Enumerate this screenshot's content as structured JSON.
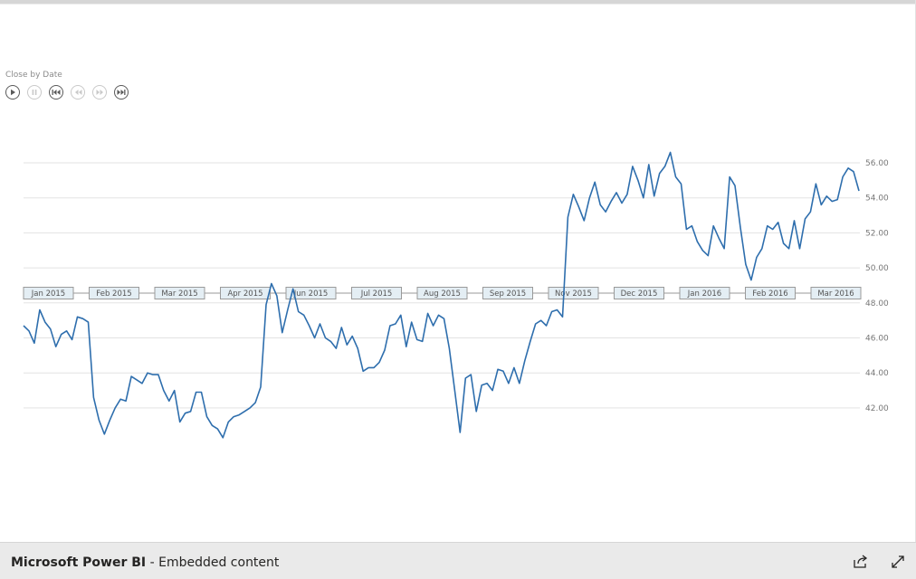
{
  "visual": {
    "title": "Close by Date",
    "controls": [
      {
        "icon": "play-icon",
        "name": "play-button",
        "enabled": true
      },
      {
        "icon": "pause-icon",
        "name": "pause-button",
        "enabled": false
      },
      {
        "icon": "skip-to-start-icon",
        "name": "skip-to-start-button",
        "enabled": true
      },
      {
        "icon": "step-back-icon",
        "name": "step-back-button",
        "enabled": false
      },
      {
        "icon": "step-forward-icon",
        "name": "step-forward-button",
        "enabled": false
      },
      {
        "icon": "skip-to-end-icon",
        "name": "skip-to-end-button",
        "enabled": true
      }
    ]
  },
  "chart_data": {
    "type": "line",
    "title": "Close by Date",
    "xlabel": "",
    "ylabel": "",
    "ylim": [
      40,
      57
    ],
    "yticks": [
      "42.00",
      "44.00",
      "46.00",
      "48.00",
      "50.00",
      "52.00",
      "54.00",
      "56.00"
    ],
    "ytick_values": [
      42,
      44,
      46,
      48,
      50,
      52,
      54,
      56
    ],
    "month_labels": [
      "Jan 2015",
      "Feb 2015",
      "Mar 2015",
      "Apr 2015",
      "Jun 2015",
      "Jul 2015",
      "Aug 2015",
      "Sep 2015",
      "Nov 2015",
      "Dec 2015",
      "Jan 2016",
      "Feb 2016",
      "Mar 2016"
    ],
    "line_color": "#2e6ead",
    "grid": true,
    "series": [
      {
        "values": [
          46.7,
          46.4,
          45.7,
          47.6,
          46.9,
          46.5,
          45.5,
          46.2,
          46.4,
          45.9,
          47.2,
          47.1,
          46.9,
          42.6,
          41.3,
          40.5,
          41.3,
          42.0,
          42.5,
          42.4,
          43.8,
          43.6,
          43.4,
          44.0,
          43.9,
          43.9,
          43.0,
          42.4,
          43.0,
          41.2,
          41.7,
          41.8,
          42.9,
          42.9,
          41.5,
          41.0,
          40.8,
          40.3,
          41.2,
          41.5,
          41.6,
          41.8,
          42.0,
          42.3,
          43.2,
          47.9,
          49.1,
          48.4,
          46.3,
          47.6,
          48.8,
          47.5,
          47.3,
          46.7,
          46.0,
          46.8,
          46.0,
          45.8,
          45.4,
          46.6,
          45.6,
          46.1,
          45.4,
          44.1,
          44.3,
          44.3,
          44.6,
          45.3,
          46.7,
          46.8,
          47.3,
          45.5,
          46.9,
          45.9,
          45.8,
          47.4,
          46.7,
          47.3,
          47.1,
          45.4,
          43.0,
          40.6,
          43.7,
          43.9,
          41.8,
          43.3,
          43.4,
          43.0,
          44.2,
          44.1,
          43.4,
          44.3,
          43.4,
          44.7,
          45.8,
          46.8,
          47.0,
          46.7,
          47.5,
          47.6,
          47.2,
          52.9,
          54.2,
          53.5,
          52.7,
          54.0,
          54.9,
          53.6,
          53.2,
          53.8,
          54.3,
          53.7,
          54.2,
          55.8,
          55.0,
          54.0,
          55.9,
          54.1,
          55.4,
          55.8,
          56.6,
          55.2,
          54.8,
          52.2,
          52.4,
          51.5,
          51.0,
          50.7,
          52.4,
          51.7,
          51.1,
          55.2,
          54.7,
          52.3,
          50.2,
          49.3,
          50.6,
          51.1,
          52.4,
          52.2,
          52.6,
          51.4,
          51.1,
          52.7,
          51.1,
          52.8,
          53.2,
          54.8,
          53.6,
          54.1,
          53.8,
          53.9,
          55.2,
          55.7,
          55.5,
          54.4
        ]
      }
    ]
  },
  "footer": {
    "brand": "Microsoft Power BI",
    "separator": " - ",
    "subtitle": "Embedded content",
    "share_icon": "share-icon",
    "fullscreen_icon": "expand-icon"
  }
}
